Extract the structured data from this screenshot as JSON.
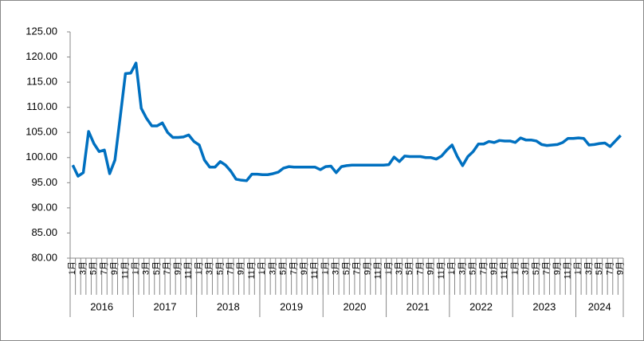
{
  "chart_data": {
    "type": "line",
    "categories": [
      "1月",
      null,
      "3月",
      null,
      "5月",
      null,
      "7月",
      null,
      "9月",
      null,
      "11月",
      null,
      "1月",
      null,
      "3月",
      null,
      "5月",
      null,
      "7月",
      null,
      "9月",
      null,
      "11月",
      null,
      "1月",
      null,
      "3月",
      null,
      "5月",
      null,
      "7月",
      null,
      "9月",
      null,
      "11月",
      null,
      "1月",
      null,
      "3月",
      null,
      "5月",
      null,
      "7月",
      null,
      "9月",
      null,
      "11月",
      null,
      "1月",
      null,
      "3月",
      null,
      "5月",
      null,
      "7月",
      null,
      "9月",
      null,
      "11月",
      null,
      "1月",
      null,
      "3月",
      null,
      "5月",
      null,
      "7月",
      null,
      "9月",
      null,
      "11月",
      null,
      "1月",
      null,
      "3月",
      null,
      "5月",
      null,
      "7月",
      null,
      "9月",
      null,
      "11月",
      null,
      "1月",
      null,
      "3月",
      null,
      "5月",
      null,
      "7月",
      null,
      "9月",
      null,
      "11月",
      null,
      "1月",
      null,
      "3月",
      null,
      "5月",
      null,
      "7月",
      null,
      "9月"
    ],
    "years": [
      "2016",
      "2017",
      "2018",
      "2019",
      "2020",
      "2021",
      "2022",
      "2023",
      "2024"
    ],
    "values": [
      98.5,
      96.3,
      97,
      105.2,
      102.8,
      101.2,
      101.5,
      96.8,
      99.5,
      108,
      116.7,
      116.8,
      118.8,
      109.8,
      107.8,
      106.3,
      106.3,
      106.9,
      105,
      104,
      104,
      104.1,
      104.5,
      103.2,
      102.5,
      99.5,
      98.1,
      98.1,
      99.2,
      98.5,
      97.3,
      95.7,
      95.5,
      95.4,
      96.7,
      96.7,
      96.6,
      96.6,
      96.8,
      97.1,
      97.9,
      98.2,
      98.1,
      98.1,
      98.1,
      98.1,
      98.1,
      97.6,
      98.2,
      98.3,
      97,
      98.2,
      98.4,
      98.5,
      98.5,
      98.5,
      98.5,
      98.5,
      98.5,
      98.5,
      98.6,
      100.1,
      99.2,
      100.3,
      100.2,
      100.2,
      100.2,
      100,
      100,
      99.7,
      100.3,
      101.5,
      102.5,
      100.2,
      98.4,
      100.2,
      101.2,
      102.7,
      102.7,
      103.2,
      103,
      103.4,
      103.3,
      103.3,
      103,
      103.9,
      103.5,
      103.5,
      103.3,
      102.6,
      102.4,
      102.5,
      102.6,
      103,
      103.8,
      103.8,
      103.9,
      103.8,
      102.5,
      102.6,
      102.8,
      102.9,
      102.2,
      103.3,
      104.4
    ],
    "color": "#0070c0",
    "ylim": [
      80,
      125
    ],
    "yticks": [
      {
        "value": 80,
        "label": "80.00"
      },
      {
        "value": 85,
        "label": "85.00"
      },
      {
        "value": 90,
        "label": "90.00"
      },
      {
        "value": 95,
        "label": "95.00"
      },
      {
        "value": 100,
        "label": "100.00"
      },
      {
        "value": 105,
        "label": "105.00"
      },
      {
        "value": 110,
        "label": "110.00"
      },
      {
        "value": 115,
        "label": "115.00"
      },
      {
        "value": 120,
        "label": "120.00"
      },
      {
        "value": 125,
        "label": "125.00"
      }
    ],
    "grid": false
  }
}
